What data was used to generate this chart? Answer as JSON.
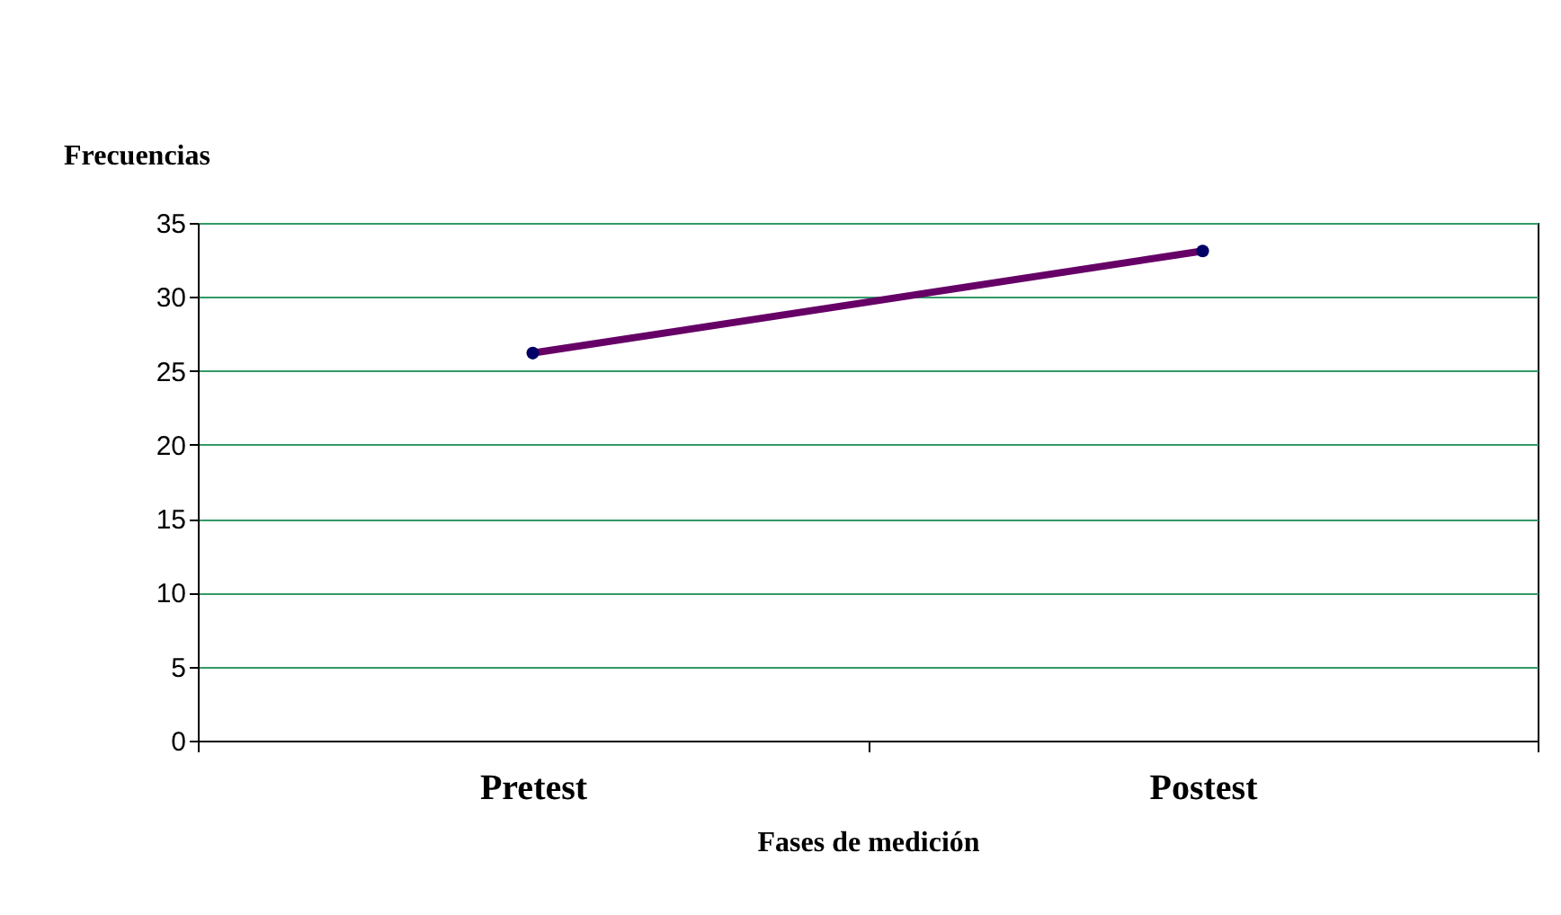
{
  "chart_data": {
    "type": "line",
    "xlabel": "Fases de medición",
    "ylabel": "Frecuencias",
    "categories": [
      "Pretest",
      "Postest"
    ],
    "series": [
      {
        "color": "#660066",
        "values": [
          26.2,
          33.1
        ]
      }
    ],
    "ylim": [
      0,
      35
    ],
    "yticks": [
      0,
      5,
      10,
      15,
      20,
      25,
      30,
      35
    ],
    "grid": "y",
    "marker": "circle",
    "line_style": "solid"
  }
}
